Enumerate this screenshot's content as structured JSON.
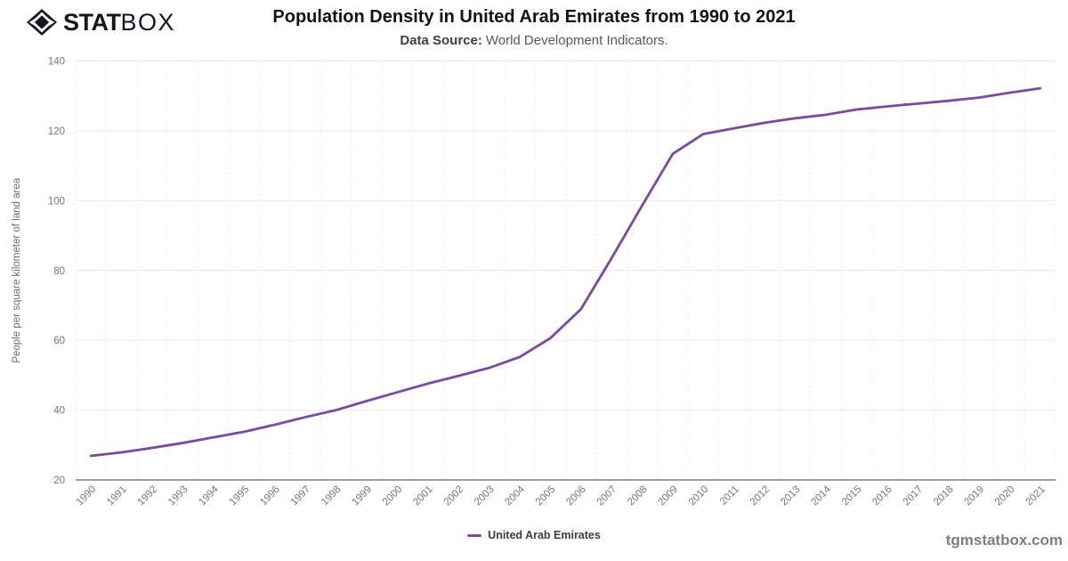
{
  "logo": {
    "text_bold": "STAT",
    "text_light": "BOX"
  },
  "header": {
    "title": "Population Density in United Arab Emirates from 1990 to 2021",
    "data_source_label": "Data Source:",
    "data_source_value": "World Development Indicators."
  },
  "footer": {
    "watermark": "tgmstatbox.com"
  },
  "chart_data": {
    "type": "line",
    "title": "Population Density in United Arab Emirates from 1990 to 2021",
    "subtitle": "Data Source: World Development Indicators.",
    "categories": [
      "1990",
      "1991",
      "1992",
      "1993",
      "1994",
      "1995",
      "1996",
      "1997",
      "1998",
      "1999",
      "2000",
      "2001",
      "2002",
      "2003",
      "2004",
      "2005",
      "2006",
      "2007",
      "2008",
      "2009",
      "2010",
      "2011",
      "2012",
      "2013",
      "2014",
      "2015",
      "2016",
      "2017",
      "2018",
      "2019",
      "2020",
      "2021"
    ],
    "series": [
      {
        "name": "United Arab Emirates",
        "color": "#7a4a9e",
        "values": [
          26.9,
          27.9,
          29.2,
          30.6,
          32.2,
          33.8,
          35.8,
          38.0,
          40.0,
          42.6,
          45.1,
          47.6,
          49.8,
          52.1,
          55.2,
          60.6,
          68.9,
          83.5,
          98.6,
          113.4,
          119.1,
          120.7,
          122.3,
          123.6,
          124.6,
          126.1,
          127.0,
          127.8,
          128.6,
          129.5,
          130.9,
          132.2
        ]
      }
    ],
    "xlabel": "",
    "ylabel": "People per square kilometer of land area",
    "ylim": [
      20,
      140
    ],
    "yticks": [
      20,
      40,
      60,
      80,
      100,
      120,
      140
    ],
    "legend_position": "bottom",
    "grid": {
      "horizontal": "solid",
      "vertical": "dotted"
    }
  }
}
